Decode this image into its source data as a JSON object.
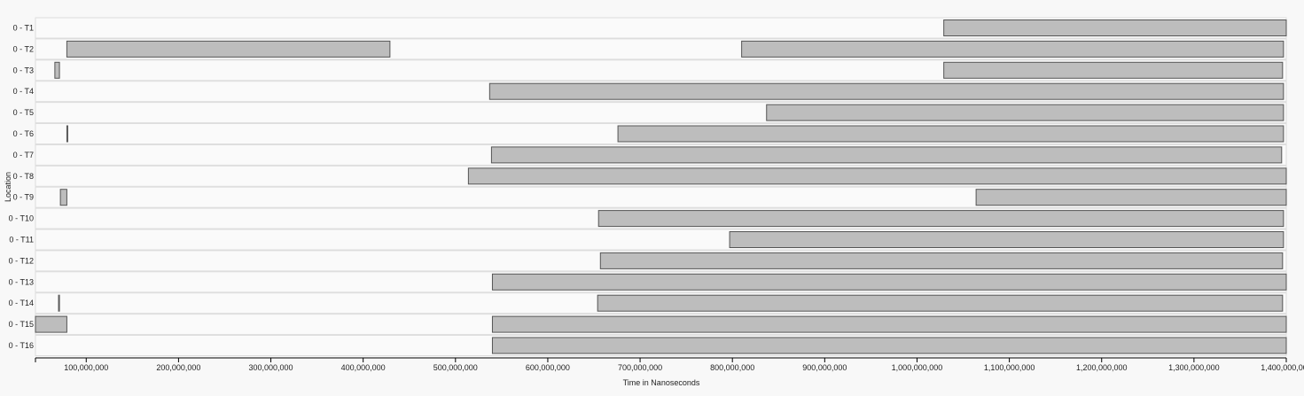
{
  "chart_data": {
    "type": "timeline",
    "ylabel": "Location",
    "xlabel": "Time in Nanoseconds",
    "xlim": [
      45000000,
      1400000000
    ],
    "xticks": [
      100000000,
      200000000,
      300000000,
      400000000,
      500000000,
      600000000,
      700000000,
      800000000,
      900000000,
      1000000000,
      1100000000,
      1200000000,
      1300000000,
      1400000000
    ],
    "tick_labels": [
      "100,000,000",
      "200,000,000",
      "300,000,000",
      "400,000,000",
      "500,000,000",
      "600,000,000",
      "700,000,000",
      "800,000,000",
      "900,000,000",
      "1,000,000,000",
      "1,100,000,000",
      "1,200,000,000",
      "1,300,000,000",
      "1,400,000,000"
    ],
    "colors": {
      "bar": "#bdbdbd",
      "bar_border": "#555555",
      "background": "#f8f8f8"
    },
    "rows": [
      {
        "label": "0 - T1",
        "intervals": [
          [
            1029000000,
            1400000000
          ]
        ]
      },
      {
        "label": "0 - T2",
        "intervals": [
          [
            79000000,
            429000000
          ],
          [
            810000000,
            1397000000
          ]
        ]
      },
      {
        "label": "0 - T3",
        "intervals": [
          [
            66000000,
            71000000
          ],
          [
            1029000000,
            1396000000
          ]
        ]
      },
      {
        "label": "0 - T4",
        "intervals": [
          [
            537000000,
            1397000000
          ]
        ]
      },
      {
        "label": "0 - T5",
        "intervals": [
          [
            837000000,
            1397000000
          ]
        ]
      },
      {
        "label": "0 - T6",
        "intervals": [
          [
            79000000,
            80000000
          ],
          [
            676000000,
            1397000000
          ]
        ]
      },
      {
        "label": "0 - T7",
        "intervals": [
          [
            539000000,
            1395000000
          ]
        ]
      },
      {
        "label": "0 - T8",
        "intervals": [
          [
            514000000,
            1400000000
          ]
        ]
      },
      {
        "label": "0 - T9",
        "intervals": [
          [
            72000000,
            79000000
          ],
          [
            1064000000,
            1400000000
          ]
        ]
      },
      {
        "label": "0 - T10",
        "intervals": [
          [
            655000000,
            1397000000
          ]
        ]
      },
      {
        "label": "0 - T11",
        "intervals": [
          [
            797000000,
            1397000000
          ]
        ]
      },
      {
        "label": "0 - T12",
        "intervals": [
          [
            657000000,
            1396000000
          ]
        ]
      },
      {
        "label": "0 - T13",
        "intervals": [
          [
            540000000,
            1400000000
          ]
        ]
      },
      {
        "label": "0 - T14",
        "intervals": [
          [
            70000000,
            71000000
          ],
          [
            654000000,
            1396000000
          ]
        ]
      },
      {
        "label": "0 - T15",
        "intervals": [
          [
            45000000,
            79000000
          ],
          [
            540000000,
            1400000000
          ]
        ]
      },
      {
        "label": "0 - T16",
        "intervals": [
          [
            540000000,
            1400000000
          ]
        ]
      }
    ]
  }
}
